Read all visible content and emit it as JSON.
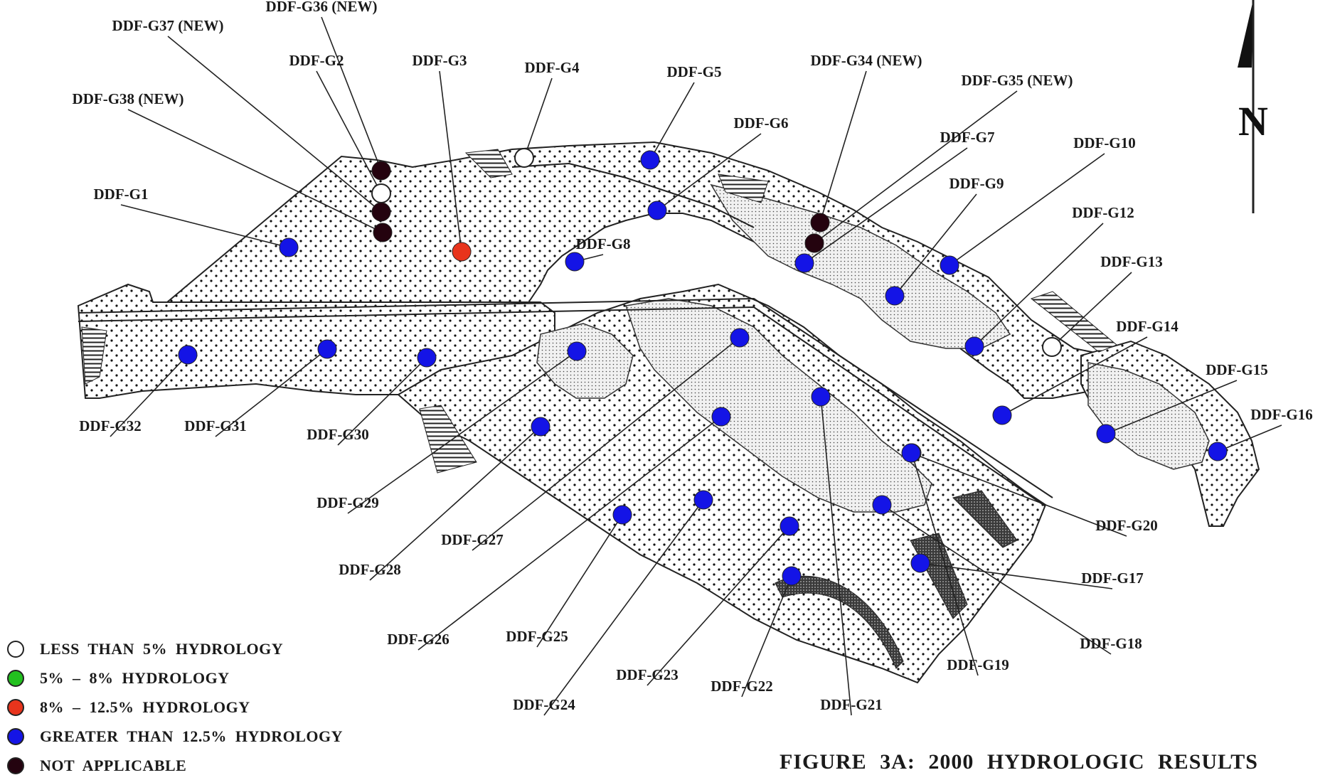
{
  "figure_title": "FIGURE 3A: 2000 HYDROLOGIC RESULTS",
  "north_label": "N",
  "category_colors": {
    "lt5": "#ffffff",
    "5to8": "#22c01f",
    "8to12": "#e8341c",
    "gt12": "#1414e6",
    "na": "#24030f"
  },
  "legend": [
    {
      "key": "lt5",
      "label": "LESS THAN 5% HYDROLOGY"
    },
    {
      "key": "5to8",
      "label": "5% – 8% HYDROLOGY"
    },
    {
      "key": "8to12",
      "label": "8% – 12.5% HYDROLOGY"
    },
    {
      "key": "gt12",
      "label": "GREATER THAN 12.5% HYDROLOGY"
    },
    {
      "key": "na",
      "label": "NOT APPLICABLE"
    }
  ],
  "stations": [
    {
      "id": "DDF-G1",
      "cat": "gt12"
    },
    {
      "id": "DDF-G2",
      "cat": "lt5"
    },
    {
      "id": "DDF-G3",
      "cat": "8to12"
    },
    {
      "id": "DDF-G4",
      "cat": "lt5"
    },
    {
      "id": "DDF-G5",
      "cat": "gt12"
    },
    {
      "id": "DDF-G6",
      "cat": "gt12"
    },
    {
      "id": "DDF-G7",
      "cat": "gt12"
    },
    {
      "id": "DDF-G8",
      "cat": "gt12"
    },
    {
      "id": "DDF-G9",
      "cat": "gt12"
    },
    {
      "id": "DDF-G10",
      "cat": "gt12"
    },
    {
      "id": "DDF-G12",
      "cat": "gt12"
    },
    {
      "id": "DDF-G13",
      "cat": "lt5"
    },
    {
      "id": "DDF-G14",
      "cat": "gt12"
    },
    {
      "id": "DDF-G15",
      "cat": "gt12"
    },
    {
      "id": "DDF-G16",
      "cat": "gt12"
    },
    {
      "id": "DDF-G17",
      "cat": "gt12"
    },
    {
      "id": "DDF-G18",
      "cat": "gt12"
    },
    {
      "id": "DDF-G19",
      "cat": "gt12"
    },
    {
      "id": "DDF-G20",
      "cat": "gt12"
    },
    {
      "id": "DDF-G21",
      "cat": "gt12"
    },
    {
      "id": "DDF-G22",
      "cat": "gt12"
    },
    {
      "id": "DDF-G23",
      "cat": "gt12"
    },
    {
      "id": "DDF-G24",
      "cat": "gt12"
    },
    {
      "id": "DDF-G25",
      "cat": "gt12"
    },
    {
      "id": "DDF-G26",
      "cat": "gt12"
    },
    {
      "id": "DDF-G27",
      "cat": "gt12"
    },
    {
      "id": "DDF-G28",
      "cat": "gt12"
    },
    {
      "id": "DDF-G29",
      "cat": "gt12"
    },
    {
      "id": "DDF-G30",
      "cat": "gt12"
    },
    {
      "id": "DDF-G31",
      "cat": "gt12"
    },
    {
      "id": "DDF-G32",
      "cat": "gt12"
    },
    {
      "id": "DDF-G34 (NEW)",
      "cat": "na"
    },
    {
      "id": "DDF-G35 (NEW)",
      "cat": "na"
    },
    {
      "id": "DDF-G36 (NEW)",
      "cat": "na"
    },
    {
      "id": "DDF-G37 (NEW)",
      "cat": "na"
    },
    {
      "id": "DDF-G38 (NEW)",
      "cat": "na"
    }
  ]
}
